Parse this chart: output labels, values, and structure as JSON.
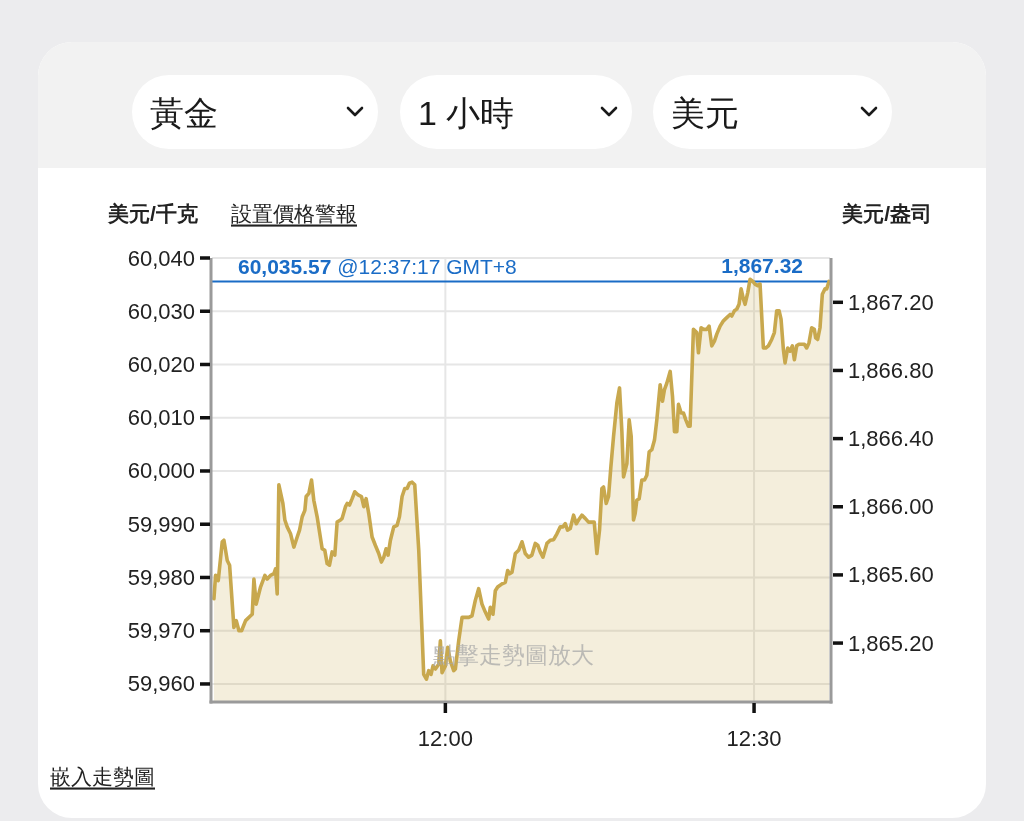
{
  "chart_data": {
    "type": "area",
    "ylabel": "美元/千克",
    "y2label": "美元/盎司",
    "annotations": [
      "黃金",
      "1 小時",
      "美元",
      "設置價格警報",
      "點擊走勢圖放大",
      "嵌入走勢圖",
      "1,867.32"
    ],
    "x": [
      11.6251,
      11.6278,
      11.6321,
      11.6386,
      11.6413,
      11.6467,
      11.6505,
      11.6575,
      11.6613,
      11.6656,
      11.6699,
      11.6764,
      11.6845,
      11.6872,
      11.6899,
      11.6936,
      11.7006,
      11.7077,
      11.7114,
      11.7168,
      11.7222,
      11.7249,
      11.7276,
      11.7303,
      11.7368,
      11.74,
      11.7438,
      11.7492,
      11.7546,
      11.76,
      11.7638,
      11.7681,
      11.7724,
      11.7745,
      11.7789,
      11.7832,
      11.7869,
      11.7923,
      11.8004,
      11.8047,
      11.8085,
      11.8123,
      11.8166,
      11.8209,
      11.8247,
      11.8301,
      11.8328,
      11.8382,
      11.8409,
      11.8447,
      11.849,
      11.8533,
      11.8587,
      11.8641,
      11.8679,
      11.8716,
      11.8759,
      11.8813,
      11.8867,
      11.8921,
      11.8964,
      11.9002,
      11.904,
      11.9072,
      11.911,
      11.9164,
      11.9218,
      11.9256,
      11.9299,
      11.9342,
      11.938,
      11.9417,
      11.9461,
      11.9504,
      11.9569,
      11.9649,
      11.9693,
      11.973,
      11.9768,
      11.98,
      11.9838,
      11.9892,
      11.9919,
      11.9946,
      12.0,
      12.0038,
      12.0081,
      12.0135,
      12.0162,
      12.0216,
      12.027,
      12.0378,
      12.0431,
      12.0485,
      12.0539,
      12.0593,
      12.0647,
      12.0701,
      12.0728,
      12.0771,
      12.0809,
      12.0847,
      12.0917,
      12.0971,
      12.1009,
      12.1041,
      12.1079,
      12.1133,
      12.1187,
      12.1241,
      12.1294,
      12.1348,
      12.1402,
      12.1456,
      12.1499,
      12.1537,
      12.158,
      12.1645,
      12.1699,
      12.1753,
      12.1807,
      12.1861,
      12.1904,
      12.1942,
      12.1979,
      12.2023,
      12.2077,
      12.212,
      12.2157,
      12.2211,
      12.2265,
      12.2319,
      12.2411,
      12.2454,
      12.2497,
      12.2535,
      12.2562,
      12.2605,
      12.2643,
      12.2681,
      12.2724,
      12.2778,
      12.2821,
      12.2859,
      12.2886,
      12.294,
      12.2977,
      12.301,
      12.3047,
      12.3074,
      12.3101,
      12.3139,
      12.3182,
      12.3225,
      12.3263,
      12.3301,
      12.3344,
      12.3387,
      12.3425,
      12.3479,
      12.3517,
      12.3549,
      12.3587,
      12.3641,
      12.3679,
      12.3711,
      12.3749,
      12.3776,
      12.3819,
      12.3857,
      12.3894,
      12.3937,
      12.3964,
      12.4018,
      12.4072,
      12.4099,
      12.4142,
      12.418,
      12.4234,
      12.4272,
      12.4315,
      12.4358,
      12.4396,
      12.445,
      12.4504,
      12.4558,
      12.4612,
      12.4639,
      12.4682,
      12.472,
      12.4757,
      12.479,
      12.4827,
      12.4854,
      12.4898,
      12.4935,
      12.4973,
      12.5016,
      12.5059,
      12.5097,
      12.5151,
      12.5189,
      12.5232,
      12.5286,
      12.5329,
      12.5367,
      12.5405,
      12.5437,
      12.5475,
      12.5502,
      12.5545,
      12.5583,
      12.562,
      12.5653,
      12.569,
      12.5728,
      12.5771,
      12.5814,
      12.5852,
      12.589,
      12.5933,
      12.5976,
      12.5998,
      12.603,
      12.6068,
      12.6106,
      12.6149,
      12.6176,
      12.6214
    ],
    "series": [
      {
        "color": "#c8a84e",
        "values": [
          59976.0,
          59980.4,
          59979.4,
          59986.7,
          59987.0,
          59983.2,
          59982.3,
          59970.6,
          59971.9,
          59970.0,
          59970.0,
          59971.9,
          59972.8,
          59973.1,
          59979.7,
          59975.0,
          59978.2,
          59980.4,
          59979.7,
          59980.4,
          59980.7,
          59981.6,
          59976.9,
          59997.4,
          59993.9,
          59990.8,
          59989.5,
          59988.2,
          59985.7,
          59987.6,
          59988.9,
          59991.4,
          59992.6,
          59995.2,
          59995.8,
          59998.3,
          59994.5,
          59991.4,
          59985.4,
          59985.1,
          59982.6,
          59982.3,
          59984.8,
          59984.2,
          59990.4,
          59990.8,
          59991.1,
          59993.3,
          59993.9,
          59993.6,
          59994.8,
          59996.1,
          59995.5,
          59995.2,
          59993.3,
          59994.8,
          59992.0,
          59987.6,
          59986.0,
          59984.5,
          59982.9,
          59983.8,
          59985.4,
          59984.2,
          59987.0,
          59989.5,
          59989.8,
          59991.4,
          59995.2,
          59996.7,
          59996.7,
          59997.7,
          59997.9,
          59997.4,
          59985.1,
          59961.8,
          59960.9,
          59962.5,
          59961.8,
          59963.4,
          59962.8,
          59963.7,
          59968.1,
          59962.1,
          59963.4,
          59966.9,
          59964.3,
          59962.5,
          59962.8,
          59968.1,
          59972.5,
          59972.5,
          59972.8,
          59975.7,
          59977.9,
          59975.0,
          59973.5,
          59972.2,
          59974.4,
          59973.1,
          59977.5,
          59978.2,
          59978.8,
          59979.1,
          59981.3,
          59980.7,
          59981.0,
          59984.5,
          59985.1,
          59986.7,
          59984.5,
          59983.8,
          59984.2,
          59986.4,
          59986.0,
          59984.8,
          59983.8,
          59986.4,
          59987.0,
          59987.1,
          59988.2,
          59989.5,
          59989.5,
          59990.1,
          59988.9,
          59989.2,
          59991.7,
          59990.1,
          59990.8,
          59991.7,
          59991.1,
          59990.4,
          59990.4,
          59984.5,
          59988.9,
          59996.7,
          59997.0,
          59993.9,
          59995.2,
          60000.8,
          60006.5,
          60012.8,
          60015.6,
          60007.4,
          59998.9,
          60001.4,
          60009.6,
          60006.5,
          59990.8,
          59992.0,
          59994.5,
          59994.8,
          59998.3,
          59998.3,
          59999.2,
          60003.6,
          60004.0,
          60005.8,
          60009.6,
          60016.2,
          60013.1,
          60015.3,
          60016.5,
          60018.7,
          60014.0,
          60007.4,
          60007.4,
          60012.5,
          60010.9,
          60010.9,
          60009.6,
          60008.4,
          60008.4,
          60026.6,
          60026.0,
          60022.2,
          60026.9,
          60026.6,
          60026.6,
          60027.2,
          60023.5,
          60024.4,
          60025.7,
          60027.2,
          60028.2,
          60028.8,
          60029.4,
          60029.1,
          60030.1,
          60030.4,
          60031.3,
          60034.2,
          60032.3,
          60031.3,
          60033.5,
          60036.0,
          60035.7,
          60035.1,
          60034.8,
          60035.1,
          60023.1,
          60023.1,
          60023.5,
          60024.7,
          60026.0,
          60030.1,
          60030.1,
          60028.5,
          60022.8,
          60020.3,
          60023.1,
          60022.5,
          60023.5,
          60020.9,
          60023.5,
          60023.8,
          60023.8,
          60023.8,
          60023.1,
          60024.1,
          60026.9,
          60026.6,
          60025.0,
          60024.7,
          60026.9,
          60033.2,
          60034.2,
          60034.2,
          60035.6
        ]
      }
    ],
    "xlim": [
      11.622,
      12.623
    ],
    "xticks": [
      {
        "value": 12,
        "label": "12:00"
      },
      {
        "value": 12.5,
        "label": "12:30"
      }
    ],
    "ylim": [
      59956.8,
      60040
    ],
    "yticks": [
      {
        "value": 59960,
        "label": "59,960"
      },
      {
        "value": 59970,
        "label": "59,970"
      },
      {
        "value": 59980,
        "label": "59,980"
      },
      {
        "value": 59990,
        "label": "59,990"
      },
      {
        "value": 60000,
        "label": "60,000"
      },
      {
        "value": 60010,
        "label": "60,010"
      },
      {
        "value": 60020,
        "label": "60,020"
      },
      {
        "value": 60030,
        "label": "60,030"
      },
      {
        "value": 60040,
        "label": "60,040"
      }
    ],
    "y2lim": [
      1864.86,
      1867.46
    ],
    "y2ticks": [
      {
        "value": 1865.2,
        "label": "1,865.20"
      },
      {
        "value": 1865.6,
        "label": "1,865.60"
      },
      {
        "value": 1866.0,
        "label": "1,866.00"
      },
      {
        "value": 1866.4,
        "label": "1,866.40"
      },
      {
        "value": 1866.8,
        "label": "1,866.80"
      },
      {
        "value": 1867.2,
        "label": "1,867.20"
      }
    ],
    "ref_lines": [
      {
        "axis": "y",
        "value": 60035.57,
        "label": "60,035.57 @12:37:17 GMT+8",
        "color": "#1a6cc6"
      }
    ],
    "grid": true
  }
}
